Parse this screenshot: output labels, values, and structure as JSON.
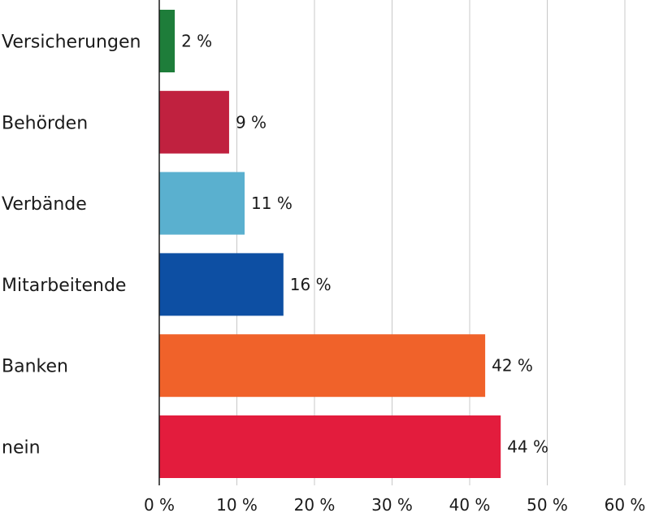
{
  "chart_data": {
    "type": "bar",
    "orientation": "horizontal",
    "categories": [
      "Versicherungen",
      "Behörden",
      "Verbände",
      "Mitarbeitende",
      "Banken",
      "nein"
    ],
    "values": [
      2,
      9,
      11,
      16,
      42,
      44
    ],
    "value_labels": [
      "2 %",
      "9 %",
      "11 %",
      "16 %",
      "42 %",
      "44 %"
    ],
    "colors": [
      "#1e7d3a",
      "#c0213f",
      "#5ab0cf",
      "#0d4fa3",
      "#f0622a",
      "#e31c3d"
    ],
    "xlim": [
      0,
      60
    ],
    "x_ticks": [
      0,
      10,
      20,
      30,
      40,
      50,
      60
    ],
    "x_tick_labels": [
      "0 %",
      "10 %",
      "20 %",
      "30 %",
      "40 %",
      "50 %",
      "60 %"
    ],
    "grid": true,
    "title": "",
    "xlabel": "",
    "ylabel": ""
  }
}
